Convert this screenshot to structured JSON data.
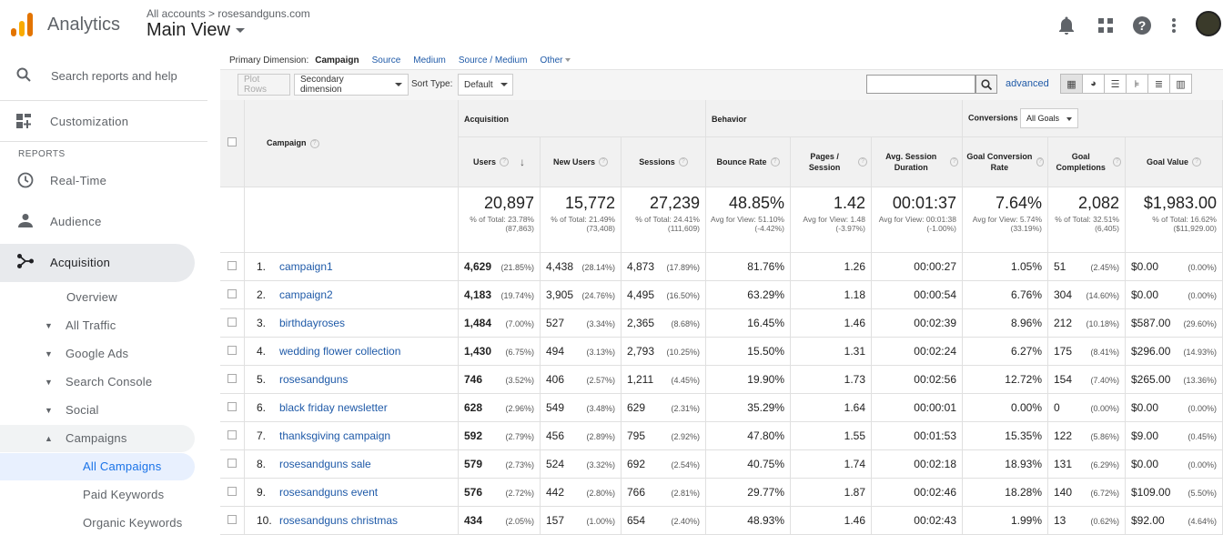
{
  "header": {
    "app_name": "Analytics",
    "account_path": "All accounts > rosesandguns.com",
    "view_name": "Main View"
  },
  "icons": {
    "notifications": "bell-icon",
    "apps": "apps-grid-icon",
    "help": "help-icon",
    "more": "more-vert-icon"
  },
  "sidebar": {
    "search_placeholder": "Search reports and help",
    "customization": "Customization",
    "reports_label": "REPORTS",
    "nav": [
      {
        "label": "Real-Time"
      },
      {
        "label": "Audience"
      },
      {
        "label": "Acquisition"
      }
    ],
    "acquisition_sub": [
      "Overview",
      "All Traffic",
      "Google Ads",
      "Search Console",
      "Social",
      "Campaigns"
    ],
    "campaigns_sub": [
      "All Campaigns",
      "Paid Keywords",
      "Organic Keywords"
    ]
  },
  "primary_dimension": {
    "label": "Primary Dimension:",
    "current": "Campaign",
    "options": [
      "Source",
      "Medium",
      "Source / Medium",
      "Other"
    ]
  },
  "toolbar": {
    "plot_rows": "Plot Rows",
    "secondary_dimension": "Secondary dimension",
    "sort_type_label": "Sort Type:",
    "sort_type_value": "Default",
    "advanced": "advanced"
  },
  "table": {
    "groups": {
      "acquisition": "Acquisition",
      "behavior": "Behavior",
      "conversions": "Conversions",
      "goal_select": "All Goals"
    },
    "col_campaign": "Campaign",
    "columns": {
      "users": "Users",
      "new_users": "New Users",
      "sessions": "Sessions",
      "bounce_rate": "Bounce Rate",
      "pages_session": "Pages / Session",
      "avg_session_duration": "Avg. Session Duration",
      "goal_conv_rate": "Goal Conversion Rate",
      "goal_completions": "Goal Completions",
      "goal_value": "Goal Value"
    },
    "totals": {
      "users": {
        "value": "20,897",
        "sub": "% of Total: 23.78% (87,863)"
      },
      "new_users": {
        "value": "15,772",
        "sub": "% of Total: 21.49% (73,408)"
      },
      "sessions": {
        "value": "27,239",
        "sub": "% of Total: 24.41% (111,609)"
      },
      "bounce_rate": {
        "value": "48.85%",
        "sub": "Avg for View: 51.10% (-4.42%)"
      },
      "pages_session": {
        "value": "1.42",
        "sub": "Avg for View: 1.48 (-3.97%)"
      },
      "avg_session_duration": {
        "value": "00:01:37",
        "sub": "Avg for View: 00:01:38 (-1.00%)"
      },
      "goal_conv_rate": {
        "value": "7.64%",
        "sub": "Avg for View: 5.74% (33.19%)"
      },
      "goal_completions": {
        "value": "2,082",
        "sub": "% of Total: 32.51% (6,405)"
      },
      "goal_value": {
        "value": "$1,983.00",
        "sub": "% of Total: 16.62% ($11,929.00)"
      }
    },
    "rows": [
      {
        "n": "1.",
        "campaign": "campaign1",
        "users": "4,629",
        "users_pct": "(21.85%)",
        "new_users": "4,438",
        "new_users_pct": "(28.14%)",
        "sessions": "4,873",
        "sessions_pct": "(17.89%)",
        "bounce": "81.76%",
        "pages": "1.26",
        "duration": "00:00:27",
        "conv": "1.05%",
        "comp": "51",
        "comp_pct": "(2.45%)",
        "value": "$0.00",
        "value_pct": "(0.00%)"
      },
      {
        "n": "2.",
        "campaign": "campaign2",
        "users": "4,183",
        "users_pct": "(19.74%)",
        "new_users": "3,905",
        "new_users_pct": "(24.76%)",
        "sessions": "4,495",
        "sessions_pct": "(16.50%)",
        "bounce": "63.29%",
        "pages": "1.18",
        "duration": "00:00:54",
        "conv": "6.76%",
        "comp": "304",
        "comp_pct": "(14.60%)",
        "value": "$0.00",
        "value_pct": "(0.00%)"
      },
      {
        "n": "3.",
        "campaign": "birthdayroses",
        "users": "1,484",
        "users_pct": "(7.00%)",
        "new_users": "527",
        "new_users_pct": "(3.34%)",
        "sessions": "2,365",
        "sessions_pct": "(8.68%)",
        "bounce": "16.45%",
        "pages": "1.46",
        "duration": "00:02:39",
        "conv": "8.96%",
        "comp": "212",
        "comp_pct": "(10.18%)",
        "value": "$587.00",
        "value_pct": "(29.60%)"
      },
      {
        "n": "4.",
        "campaign": "wedding flower collection",
        "users": "1,430",
        "users_pct": "(6.75%)",
        "new_users": "494",
        "new_users_pct": "(3.13%)",
        "sessions": "2,793",
        "sessions_pct": "(10.25%)",
        "bounce": "15.50%",
        "pages": "1.31",
        "duration": "00:02:24",
        "conv": "6.27%",
        "comp": "175",
        "comp_pct": "(8.41%)",
        "value": "$296.00",
        "value_pct": "(14.93%)"
      },
      {
        "n": "5.",
        "campaign": "rosesandguns",
        "users": "746",
        "users_pct": "(3.52%)",
        "new_users": "406",
        "new_users_pct": "(2.57%)",
        "sessions": "1,211",
        "sessions_pct": "(4.45%)",
        "bounce": "19.90%",
        "pages": "1.73",
        "duration": "00:02:56",
        "conv": "12.72%",
        "comp": "154",
        "comp_pct": "(7.40%)",
        "value": "$265.00",
        "value_pct": "(13.36%)"
      },
      {
        "n": "6.",
        "campaign": "black friday newsletter",
        "users": "628",
        "users_pct": "(2.96%)",
        "new_users": "549",
        "new_users_pct": "(3.48%)",
        "sessions": "629",
        "sessions_pct": "(2.31%)",
        "bounce": "35.29%",
        "pages": "1.64",
        "duration": "00:00:01",
        "conv": "0.00%",
        "comp": "0",
        "comp_pct": "(0.00%)",
        "value": "$0.00",
        "value_pct": "(0.00%)"
      },
      {
        "n": "7.",
        "campaign": "thanksgiving campaign",
        "users": "592",
        "users_pct": "(2.79%)",
        "new_users": "456",
        "new_users_pct": "(2.89%)",
        "sessions": "795",
        "sessions_pct": "(2.92%)",
        "bounce": "47.80%",
        "pages": "1.55",
        "duration": "00:01:53",
        "conv": "15.35%",
        "comp": "122",
        "comp_pct": "(5.86%)",
        "value": "$9.00",
        "value_pct": "(0.45%)"
      },
      {
        "n": "8.",
        "campaign": "rosesandguns sale",
        "users": "579",
        "users_pct": "(2.73%)",
        "new_users": "524",
        "new_users_pct": "(3.32%)",
        "sessions": "692",
        "sessions_pct": "(2.54%)",
        "bounce": "40.75%",
        "pages": "1.74",
        "duration": "00:02:18",
        "conv": "18.93%",
        "comp": "131",
        "comp_pct": "(6.29%)",
        "value": "$0.00",
        "value_pct": "(0.00%)"
      },
      {
        "n": "9.",
        "campaign": "rosesandguns event",
        "users": "576",
        "users_pct": "(2.72%)",
        "new_users": "442",
        "new_users_pct": "(2.80%)",
        "sessions": "766",
        "sessions_pct": "(2.81%)",
        "bounce": "29.77%",
        "pages": "1.87",
        "duration": "00:02:46",
        "conv": "18.28%",
        "comp": "140",
        "comp_pct": "(6.72%)",
        "value": "$109.00",
        "value_pct": "(5.50%)"
      },
      {
        "n": "10.",
        "campaign": "rosesandguns christmas",
        "users": "434",
        "users_pct": "(2.05%)",
        "new_users": "157",
        "new_users_pct": "(1.00%)",
        "sessions": "654",
        "sessions_pct": "(2.40%)",
        "bounce": "48.93%",
        "pages": "1.46",
        "duration": "00:02:43",
        "conv": "1.99%",
        "comp": "13",
        "comp_pct": "(0.62%)",
        "value": "$92.00",
        "value_pct": "(4.64%)"
      }
    ]
  },
  "colors": {
    "link": "#1f5aa8",
    "logo_orange": "#e37400",
    "logo_yellow": "#f9ab00",
    "active_nav": "#e8eaed",
    "selected_nav": "#e8f0fe"
  }
}
